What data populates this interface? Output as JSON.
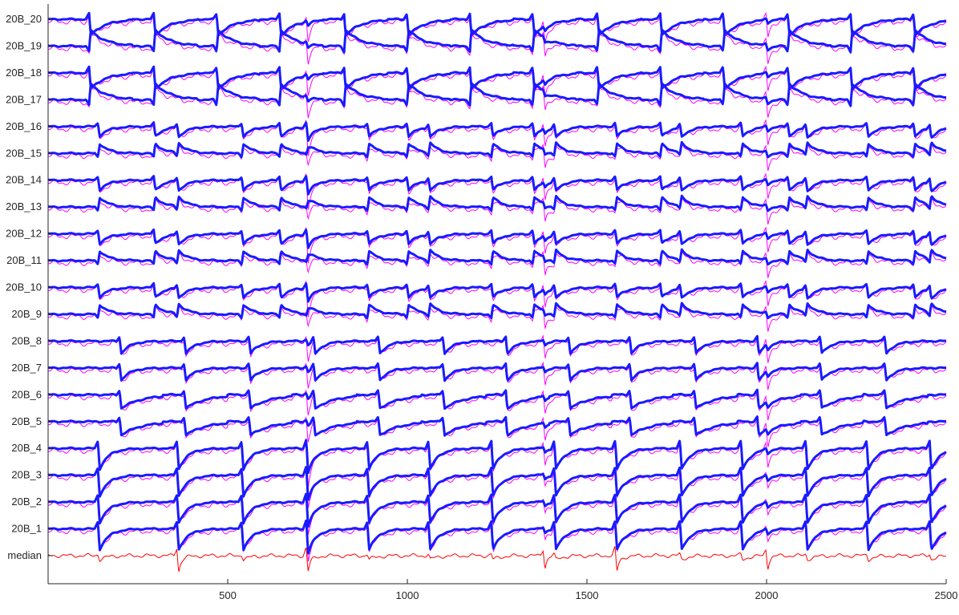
{
  "chart_data": {
    "type": "line",
    "title": "",
    "xlabel": "",
    "ylabel": "",
    "xlim": [
      0,
      2500
    ],
    "x_ticks": [
      500,
      1000,
      1500,
      2000,
      2500
    ],
    "grid": false,
    "legend": "none",
    "colors": {
      "channel_trace": "#1a1aff",
      "channel_overlay": "#ff00ff",
      "median_trace": "#ff0000",
      "axis": "#262626"
    },
    "channel_labels": [
      "20B_20",
      "20B_19",
      "20B_18",
      "20B_17",
      "20B_16",
      "20B_15",
      "20B_14",
      "20B_13",
      "20B_12",
      "20B_11",
      "20B_10",
      "20B_9",
      "20B_8",
      "20B_7",
      "20B_6",
      "20B_5",
      "20B_4",
      "20B_3",
      "20B_2",
      "20B_1",
      "median"
    ],
    "events": {
      "group_a": [
        115,
        295,
        470,
        645,
        825,
        1000,
        1175,
        1350,
        1530,
        1705,
        1880,
        2060,
        2235,
        2410
      ],
      "group_b": [
        140,
        360,
        540,
        720,
        890,
        1060,
        1235,
        1410,
        1580,
        1760,
        1930,
        2110,
        2280,
        2455
      ],
      "group_c": [
        200,
        380,
        560,
        740,
        920,
        1100,
        1275,
        1450,
        1620,
        1800,
        1975,
        2150,
        2330
      ],
      "artifacts": [
        720,
        1380,
        2000
      ],
      "median_dips": [
        360,
        720,
        1380,
        1580,
        2000
      ]
    }
  }
}
